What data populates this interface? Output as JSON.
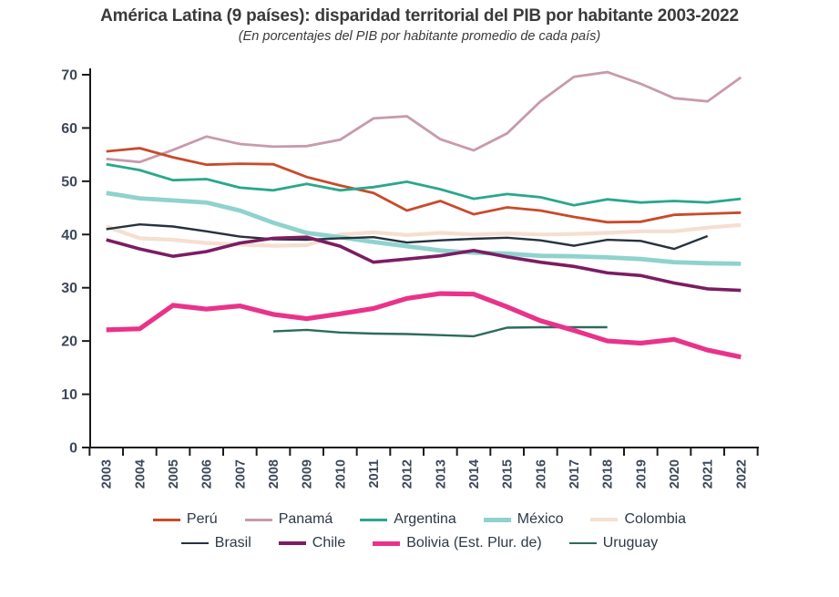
{
  "chart_data": {
    "type": "line",
    "title": "América Latina (9 países): disparidad territorial del PIB por habitante 2003-2022",
    "subtitle": "(En porcentajes del PIB por habitante promedio de cada país)",
    "x": [
      "2003",
      "2004",
      "2005",
      "2006",
      "2007",
      "2008",
      "2009",
      "2010",
      "2011",
      "2012",
      "2013",
      "2014",
      "2015",
      "2016",
      "2017",
      "2018",
      "2019",
      "2020",
      "2021",
      "2022"
    ],
    "ylim": [
      0,
      70
    ],
    "yticks": [
      0,
      10,
      20,
      30,
      40,
      50,
      60,
      70
    ],
    "grid": false,
    "legend_position": "bottom",
    "colors": {
      "axis": "#1a1a1a",
      "tick_labels": "#3d4858",
      "legend_text": "#2e3947",
      "title_text": "#3a3a39"
    },
    "series": [
      {
        "name": "Perú",
        "color": "#c84b2b",
        "width": 2.8,
        "values": [
          55.6,
          56.2,
          54.5,
          53.1,
          53.3,
          53.2,
          50.8,
          49.2,
          47.8,
          44.5,
          46.3,
          43.8,
          45.1,
          44.5,
          43.3,
          42.3,
          42.4,
          43.7,
          43.9,
          44.1
        ]
      },
      {
        "name": "Panamá",
        "color": "#c79aad",
        "width": 2.8,
        "values": [
          54.2,
          53.6,
          55.9,
          58.4,
          57.0,
          56.5,
          56.6,
          57.8,
          61.8,
          62.2,
          57.9,
          55.8,
          59.0,
          65.0,
          69.6,
          70.5,
          68.3,
          65.6,
          65.0,
          69.5
        ]
      },
      {
        "name": "Argentina",
        "color": "#29a78b",
        "width": 2.8,
        "values": [
          53.2,
          52.1,
          50.2,
          50.4,
          48.8,
          48.3,
          49.5,
          48.3,
          48.9,
          49.9,
          48.5,
          46.7,
          47.6,
          47.0,
          45.5,
          46.6,
          46.0,
          46.3,
          46.0,
          46.7
        ]
      },
      {
        "name": "México",
        "color": "#8fd2ce",
        "width": 4.8,
        "values": [
          47.8,
          46.8,
          46.4,
          46.0,
          44.5,
          42.2,
          40.3,
          39.5,
          38.6,
          37.8,
          37.0,
          36.6,
          36.4,
          36.0,
          35.9,
          35.7,
          35.4,
          34.8,
          34.6,
          34.5
        ]
      },
      {
        "name": "Colombia",
        "color": "#f5dfd0",
        "width": 4.2,
        "values": [
          41.5,
          39.3,
          39.0,
          38.4,
          38.1,
          37.9,
          38.0,
          40.0,
          40.4,
          39.9,
          40.3,
          40.0,
          40.2,
          40.0,
          40.1,
          40.3,
          40.6,
          40.6,
          41.3,
          41.8
        ]
      },
      {
        "name": "Brasil",
        "color": "#26323e",
        "width": 2.4,
        "values": [
          41.0,
          41.9,
          41.5,
          40.6,
          39.6,
          39.1,
          39.0,
          39.3,
          39.5,
          38.5,
          38.9,
          39.2,
          39.4,
          38.9,
          37.9,
          39.0,
          38.8,
          37.3,
          39.7,
          null
        ]
      },
      {
        "name": "Chile",
        "color": "#7b1d63",
        "width": 3.6,
        "values": [
          39.0,
          37.3,
          35.9,
          36.8,
          38.4,
          39.3,
          39.5,
          37.8,
          34.8,
          35.4,
          36.0,
          37.0,
          35.8,
          34.8,
          34.0,
          32.8,
          32.3,
          30.9,
          29.8,
          29.5
        ]
      },
      {
        "name": "Bolivia (Est. Plur. de)",
        "color": "#e9338a",
        "width": 5.2,
        "values": [
          22.1,
          22.3,
          26.7,
          26.0,
          26.6,
          25.0,
          24.2,
          25.1,
          26.1,
          28.0,
          28.9,
          28.8,
          26.4,
          23.8,
          22.0,
          20.0,
          19.6,
          20.3,
          18.3,
          17.0
        ]
      },
      {
        "name": "Uruguay",
        "color": "#2d6b5c",
        "width": 2.4,
        "values": [
          null,
          null,
          null,
          null,
          null,
          21.8,
          22.1,
          21.6,
          21.4,
          21.3,
          21.1,
          20.9,
          22.5,
          22.6,
          22.6,
          22.6,
          null,
          null,
          null,
          null
        ]
      }
    ]
  }
}
